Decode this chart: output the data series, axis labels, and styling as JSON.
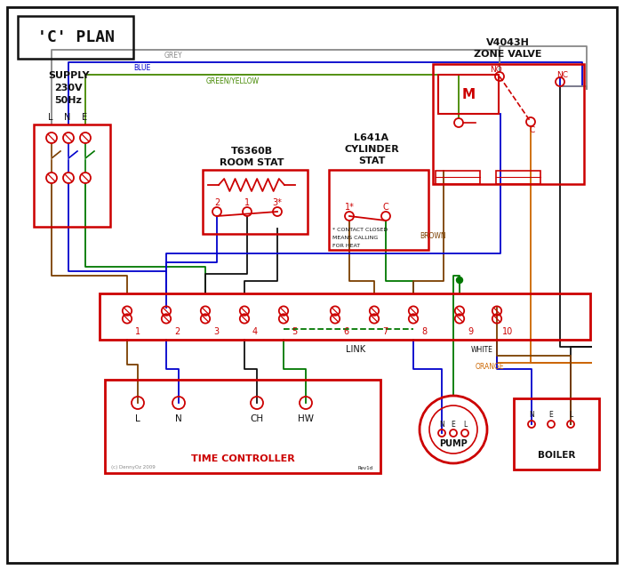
{
  "title": "'C' PLAN",
  "bg_color": "#ffffff",
  "RED": "#cc0000",
  "BLUE": "#0000cc",
  "GREEN": "#007700",
  "BROWN": "#7B3F00",
  "GREY": "#888888",
  "ORANGE": "#cc6600",
  "BLACK": "#111111",
  "GY": "#448800",
  "supply_lines": [
    "SUPPLY",
    "230V",
    "50Hz"
  ],
  "lne": [
    "L",
    "N",
    "E"
  ],
  "zone_valve": [
    "V4043H",
    "ZONE VALVE"
  ],
  "room_stat": [
    "T6360B",
    "ROOM STAT"
  ],
  "cyl_stat": [
    "L641A",
    "CYLINDER",
    "STAT"
  ],
  "tc_label": "TIME CONTROLLER",
  "pump_label": "PUMP",
  "boiler_label": "BOILER",
  "copyright": "(c) DennyOz 2009",
  "rev": "Rev1d",
  "wire_labels": [
    "GREY",
    "BLUE",
    "GREEN/YELLOW",
    "BROWN",
    "WHITE",
    "ORANGE"
  ],
  "link_label": "LINK",
  "no_label": "NO",
  "nc_label": "NC",
  "c_label": "C",
  "m_label": "M",
  "contact_note": [
    "* CONTACT CLOSED",
    "MEANS CALLING",
    "FOR HEAT"
  ],
  "rs_terms": [
    "2",
    "1",
    "3*"
  ],
  "cs_terms": [
    "1*",
    "C"
  ],
  "tc_terms": [
    "L",
    "N",
    "CH",
    "HW"
  ],
  "nel": [
    "N",
    "E",
    "L"
  ]
}
